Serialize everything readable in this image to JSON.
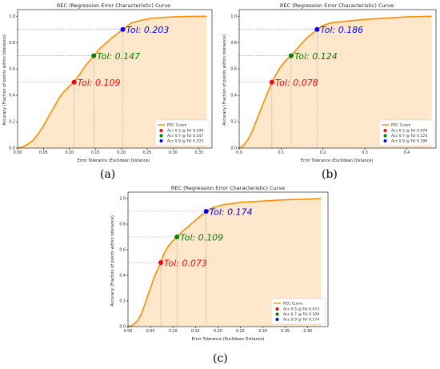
{
  "colors": {
    "curve": "#ff8c00",
    "fill": "#ffe7cc",
    "p50": "#ff0000",
    "p70": "#008000",
    "p90": "#0000ff",
    "guide": "#999999"
  },
  "chart_data": [
    {
      "type": "line",
      "title": "REC (Regression Error Characteristic) Curve",
      "xlabel": "Error Tolerance (Euclidean Distance)",
      "ylabel": "Accuracy (Fraction of points within tolerance)",
      "xlim": [
        0,
        0.375
      ],
      "ylim": [
        0,
        1.05
      ],
      "xticks": [
        0,
        0.05,
        0.1,
        0.15,
        0.2,
        0.25,
        0.3,
        0.35
      ],
      "xtick_labels": [
        "0.00",
        "0.05",
        "0.10",
        "0.15",
        "0.20",
        "0.25",
        "0.30",
        "0.35"
      ],
      "yticks": [
        0,
        0.2,
        0.4,
        0.6,
        0.8,
        1.0
      ],
      "ytick_labels": [
        "0.0",
        "0.2",
        "0.4",
        "0.6",
        "0.8",
        "1.0"
      ],
      "series": [
        {
          "name": "REC Curve",
          "x": [
            0,
            0.01,
            0.02,
            0.03,
            0.04,
            0.05,
            0.06,
            0.07,
            0.08,
            0.09,
            0.1,
            0.109,
            0.12,
            0.13,
            0.147,
            0.16,
            0.18,
            0.203,
            0.22,
            0.24,
            0.26,
            0.28,
            0.3,
            0.33,
            0.365
          ],
          "y": [
            0,
            0.01,
            0.03,
            0.06,
            0.11,
            0.17,
            0.24,
            0.31,
            0.38,
            0.43,
            0.47,
            0.5,
            0.56,
            0.62,
            0.7,
            0.76,
            0.83,
            0.9,
            0.95,
            0.97,
            0.985,
            0.99,
            0.995,
            0.998,
            1.0
          ]
        }
      ],
      "markers": [
        {
          "acc": 0.5,
          "tol": 0.109,
          "label": "Tol: 0.109",
          "legend": "Acc 0.5 @ Tol 0.109"
        },
        {
          "acc": 0.7,
          "tol": 0.147,
          "label": "Tol: 0.147",
          "legend": "Acc 0.7 @ Tol 0.147"
        },
        {
          "acc": 0.9,
          "tol": 0.203,
          "label": "Tol: 0.203",
          "legend": "Acc 0.9 @ Tol 0.203"
        }
      ],
      "legend_position": "bottom-right",
      "grid": false,
      "caption": "(a)"
    },
    {
      "type": "line",
      "title": "REC (Regression Error Characteristic) Curve",
      "xlabel": "Error Tolerance (Euclidean Distance)",
      "ylabel": "Accuracy (Fraction of points within tolerance)",
      "xlim": [
        0,
        0.47
      ],
      "ylim": [
        0,
        1.05
      ],
      "xticks": [
        0,
        0.1,
        0.2,
        0.3,
        0.4
      ],
      "xtick_labels": [
        "0.0",
        "0.1",
        "0.2",
        "0.3",
        "0.4"
      ],
      "yticks": [
        0,
        0.2,
        0.4,
        0.6,
        0.8,
        1.0
      ],
      "ytick_labels": [
        "0.0",
        "0.2",
        "0.4",
        "0.6",
        "0.8",
        "1.0"
      ],
      "series": [
        {
          "name": "REC Curve",
          "x": [
            0,
            0.01,
            0.02,
            0.03,
            0.04,
            0.05,
            0.06,
            0.078,
            0.09,
            0.1,
            0.11,
            0.124,
            0.14,
            0.16,
            0.186,
            0.2,
            0.22,
            0.25,
            0.3,
            0.35,
            0.4,
            0.46
          ],
          "y": [
            0,
            0.02,
            0.06,
            0.12,
            0.2,
            0.28,
            0.36,
            0.5,
            0.57,
            0.62,
            0.66,
            0.7,
            0.76,
            0.83,
            0.9,
            0.93,
            0.95,
            0.96,
            0.975,
            0.985,
            0.995,
            1.0
          ]
        }
      ],
      "markers": [
        {
          "acc": 0.5,
          "tol": 0.078,
          "label": "Tol: 0.078",
          "legend": "Acc 0.5 @ Tol 0.078"
        },
        {
          "acc": 0.7,
          "tol": 0.124,
          "label": "Tol: 0.124",
          "legend": "Acc 0.7 @ Tol 0.124"
        },
        {
          "acc": 0.9,
          "tol": 0.186,
          "label": "Tol: 0.186",
          "legend": "Acc 0.9 @ Tol 0.186"
        }
      ],
      "legend_position": "bottom-right",
      "grid": false,
      "caption": "(b)"
    },
    {
      "type": "line",
      "title": "REC (Regression Error Characteristic) Curve",
      "xlabel": "Error Tolerance (Euclidean Distance)",
      "ylabel": "Accuracy (Fraction of points within tolerance)",
      "xlim": [
        0,
        0.445
      ],
      "ylim": [
        0,
        1.05
      ],
      "xticks": [
        0,
        0.05,
        0.1,
        0.15,
        0.2,
        0.25,
        0.3,
        0.35,
        0.4
      ],
      "xtick_labels": [
        "0.00",
        "0.05",
        "0.10",
        "0.15",
        "0.20",
        "0.25",
        "0.30",
        "0.35",
        "0.40"
      ],
      "yticks": [
        0,
        0.2,
        0.4,
        0.6,
        0.8,
        1.0
      ],
      "ytick_labels": [
        "0.0",
        "0.2",
        "0.4",
        "0.6",
        "0.8",
        "1.0"
      ],
      "series": [
        {
          "name": "REC Curve",
          "x": [
            0,
            0.01,
            0.02,
            0.03,
            0.04,
            0.05,
            0.06,
            0.073,
            0.08,
            0.09,
            0.1,
            0.109,
            0.12,
            0.14,
            0.16,
            0.174,
            0.19,
            0.21,
            0.25,
            0.3,
            0.35,
            0.4,
            0.43
          ],
          "y": [
            0,
            0.01,
            0.04,
            0.1,
            0.2,
            0.3,
            0.4,
            0.5,
            0.57,
            0.63,
            0.67,
            0.7,
            0.74,
            0.8,
            0.86,
            0.9,
            0.93,
            0.95,
            0.97,
            0.98,
            0.99,
            0.995,
            1.0
          ]
        }
      ],
      "markers": [
        {
          "acc": 0.5,
          "tol": 0.073,
          "label": "Tol: 0.073",
          "legend": "Acc 0.5 @ Tol 0.073"
        },
        {
          "acc": 0.7,
          "tol": 0.109,
          "label": "Tol: 0.109",
          "legend": "Acc 0.7 @ Tol 0.109"
        },
        {
          "acc": 0.9,
          "tol": 0.174,
          "label": "Tol: 0.174",
          "legend": "Acc 0.9 @ Tol 0.174"
        }
      ],
      "legend_position": "bottom-right",
      "grid": false,
      "caption": "(c)"
    }
  ]
}
